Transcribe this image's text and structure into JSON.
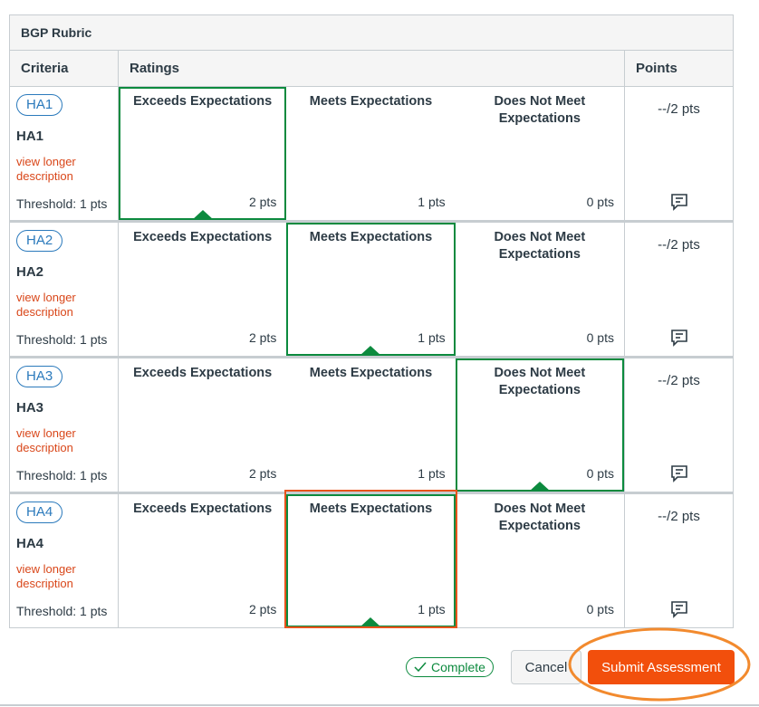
{
  "rubric": {
    "title": "BGP Rubric",
    "headers": {
      "criteria": "Criteria",
      "ratings": "Ratings",
      "points": "Points"
    },
    "rows": [
      {
        "tag": "HA1",
        "name": "HA1",
        "link": "view longer description",
        "threshold": "Threshold: 1 pts",
        "ratings": [
          {
            "title": "Exceeds Expectations",
            "pts": "2 pts"
          },
          {
            "title": "Meets Expectations",
            "pts": "1 pts"
          },
          {
            "title": "Does Not Meet Expectations",
            "pts": "0 pts"
          }
        ],
        "selected_rating": 0,
        "points": "--/2 pts"
      },
      {
        "tag": "HA2",
        "name": "HA2",
        "link": "view longer description",
        "threshold": "Threshold: 1 pts",
        "ratings": [
          {
            "title": "Exceeds Expectations",
            "pts": "2 pts"
          },
          {
            "title": "Meets Expectations",
            "pts": "1 pts"
          },
          {
            "title": "Does Not Meet Expectations",
            "pts": "0 pts"
          }
        ],
        "selected_rating": 1,
        "points": "--/2 pts"
      },
      {
        "tag": "HA3",
        "name": "HA3",
        "link": "view longer description",
        "threshold": "Threshold: 1 pts",
        "ratings": [
          {
            "title": "Exceeds Expectations",
            "pts": "2 pts"
          },
          {
            "title": "Meets Expectations",
            "pts": "1 pts"
          },
          {
            "title": "Does Not Meet Expectations",
            "pts": "0 pts"
          }
        ],
        "selected_rating": 2,
        "points": "--/2 pts"
      },
      {
        "tag": "HA4",
        "name": "HA4",
        "link": "view longer description",
        "threshold": "Threshold: 1 pts",
        "ratings": [
          {
            "title": "Exceeds Expectations",
            "pts": "2 pts"
          },
          {
            "title": "Meets Expectations",
            "pts": "1 pts"
          },
          {
            "title": "Does Not Meet Expectations",
            "pts": "0 pts"
          }
        ],
        "selected_rating": 1,
        "points": "--/2 pts"
      }
    ]
  },
  "footer": {
    "complete_label": "Complete",
    "cancel_label": "Cancel",
    "submit_label": "Submit Assessment"
  },
  "icons": {
    "comment": "comment-icon",
    "check": "check-icon"
  },
  "colors": {
    "selected": "#0c8a3e",
    "accent": "#f24f0c",
    "link": "#d9471a",
    "tag": "#2b7abc"
  }
}
